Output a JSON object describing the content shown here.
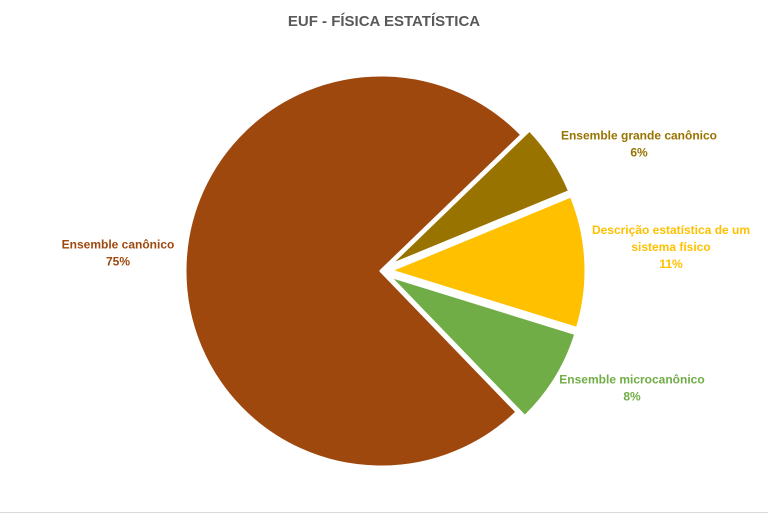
{
  "chart_data": {
    "type": "pie",
    "title": "EUF - FÍSICA ESTATÍSTICA",
    "slices": [
      {
        "name": "Ensemble grande canônico",
        "label_lines": [
          "Ensemble grande canônico"
        ],
        "value": 6,
        "value_label": "6%",
        "color": "#997300",
        "exploded": true
      },
      {
        "name": "Descrição estatística de um sistema físico",
        "label_lines": [
          "Descrição estatística de um",
          "sistema físico"
        ],
        "value": 11,
        "value_label": "11%",
        "color": "#FFC000",
        "exploded": true
      },
      {
        "name": "Ensemble microcanônico",
        "label_lines": [
          "Ensemble microcanônico"
        ],
        "value": 8,
        "value_label": "8%",
        "color": "#70AD47",
        "exploded": true
      },
      {
        "name": "Ensemble canônico",
        "label_lines": [
          "Ensemble canônico"
        ],
        "value": 75,
        "value_label": "75%",
        "color": "#9E480E",
        "exploded": false
      }
    ],
    "legend": "none"
  }
}
